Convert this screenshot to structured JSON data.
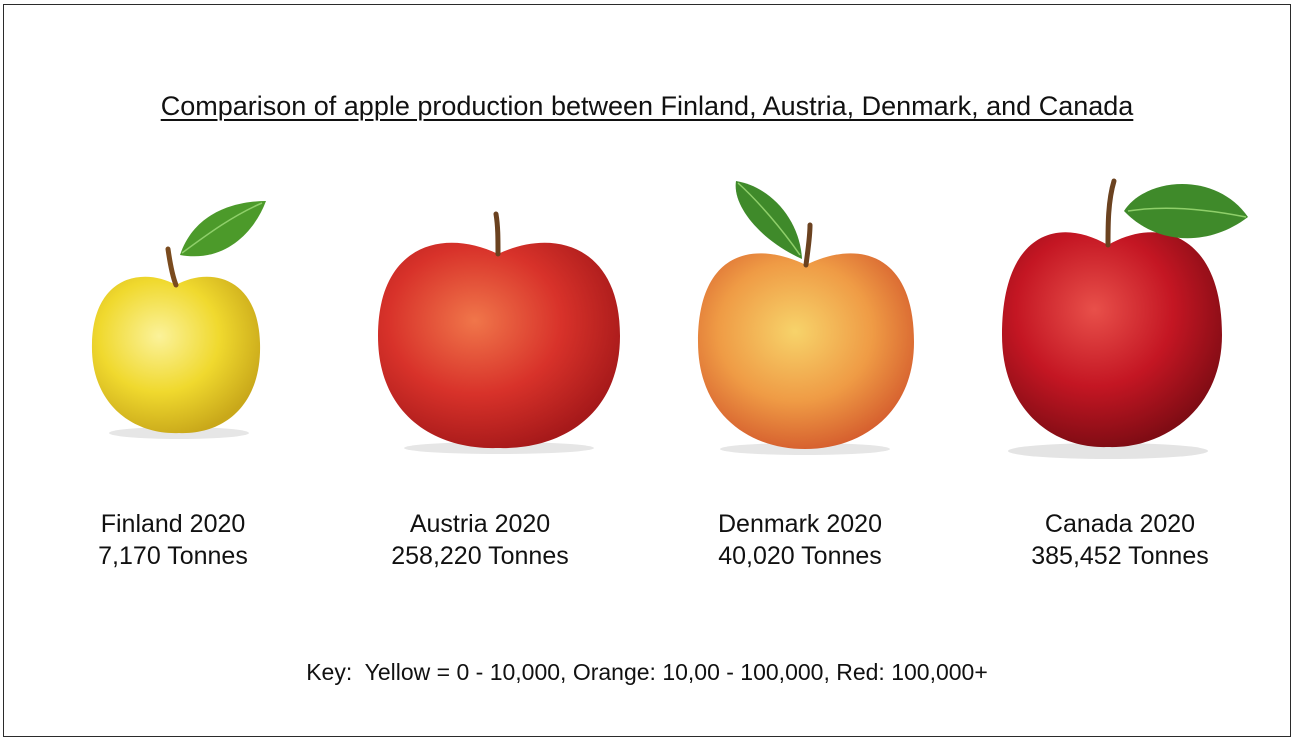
{
  "title": "Comparison of apple production between Finland, Austria, Denmark, and Canada",
  "apples": [
    {
      "country_year": "Finland 2020",
      "production": "7,170 Tonnes",
      "color_class": "yellow",
      "fill": "#f2dc3c"
    },
    {
      "country_year": "Austria 2020",
      "production": "258,220 Tonnes",
      "color_class": "red",
      "fill": "#d8322a"
    },
    {
      "country_year": "Denmark 2020",
      "production": "40,020 Tonnes",
      "color_class": "orange",
      "fill": "#ef9b45"
    },
    {
      "country_year": "Canada 2020",
      "production": "385,452 Tonnes",
      "color_class": "red",
      "fill": "#c41623"
    }
  ],
  "key": "Key:  Yellow = 0 - 10,000, Orange: 10,00 - 100,000, Red: 100,000+"
}
